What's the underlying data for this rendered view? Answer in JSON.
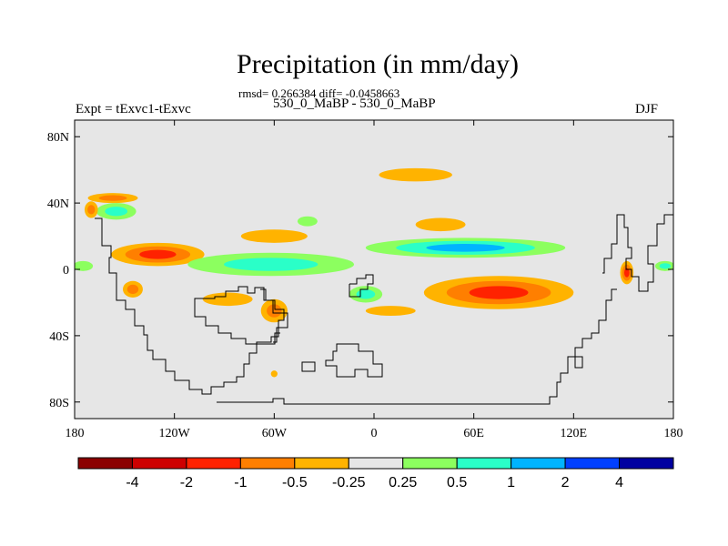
{
  "title": "Precipitation (in mm/day)",
  "stats": "rmsd= 0.266384 diff= -0.0458663",
  "subtitle": "530_0_MaBP - 530_0_MaBP",
  "left_label": "Expt = tExvc1-tExvc",
  "right_label": "DJF",
  "axes": {
    "lon_ticks": [
      {
        "value": -180,
        "label": "180"
      },
      {
        "value": -120,
        "label": "120W"
      },
      {
        "value": -60,
        "label": "60W"
      },
      {
        "value": 0,
        "label": "0"
      },
      {
        "value": 60,
        "label": "60E"
      },
      {
        "value": 120,
        "label": "120E"
      },
      {
        "value": 180,
        "label": "180"
      }
    ],
    "lat_ticks": [
      {
        "value": 80,
        "label": "80N"
      },
      {
        "value": 40,
        "label": "40N"
      },
      {
        "value": 0,
        "label": "0"
      },
      {
        "value": -40,
        "label": "40S"
      },
      {
        "value": -80,
        "label": "80S"
      }
    ],
    "lon_range": [
      -180,
      180
    ],
    "lat_range": [
      -90,
      90
    ]
  },
  "colors": {
    "background_field": "#e6e6e6",
    "coastline": "#000000"
  },
  "colorbar": {
    "colors": [
      "#8b0000",
      "#cd0000",
      "#ff2200",
      "#ff7f00",
      "#ffb300",
      "#e6e6e6",
      "#8cff5f",
      "#2affc8",
      "#00b4ff",
      "#0040ff",
      "#0000a0"
    ],
    "labels": [
      "-4",
      "-2",
      "-1",
      "-0.5",
      "-0.25",
      "0.25",
      "0.5",
      "1",
      "2",
      "4"
    ]
  },
  "chart_data": {
    "type": "heatmap",
    "variable": "Precipitation difference",
    "units": "mm/day",
    "season": "DJF",
    "levels": [
      -4,
      -2,
      -1,
      -0.5,
      -0.25,
      0.25,
      0.5,
      1,
      2,
      4
    ],
    "anomalies": [
      {
        "lon": 75,
        "lat": -14,
        "rx": 45,
        "ry": 10,
        "levels": [
          -0.25,
          -0.5,
          -1
        ]
      },
      {
        "lon": -130,
        "lat": 9,
        "rx": 28,
        "ry": 7,
        "levels": [
          -0.25,
          -0.5,
          -1
        ]
      },
      {
        "lon": 55,
        "lat": 13,
        "rx": 60,
        "ry": 6,
        "levels": [
          0.25,
          0.5,
          1
        ]
      },
      {
        "lon": -62,
        "lat": 3,
        "rx": 50,
        "ry": 7,
        "levels": [
          0.25,
          0.5
        ]
      },
      {
        "lon": -155,
        "lat": 35,
        "rx": 12,
        "ry": 5,
        "levels": [
          0.25,
          0.5
        ]
      },
      {
        "lon": -157,
        "lat": 43,
        "rx": 15,
        "ry": 3,
        "levels": [
          -0.25,
          -0.5
        ]
      },
      {
        "lon": -170,
        "lat": 36,
        "rx": 4,
        "ry": 5,
        "levels": [
          -0.25,
          -0.5
        ]
      },
      {
        "lon": 152,
        "lat": -2,
        "rx": 4,
        "ry": 7,
        "levels": [
          -0.25,
          -0.5,
          -1
        ]
      },
      {
        "lon": -145,
        "lat": -12,
        "rx": 6,
        "ry": 5,
        "levels": [
          -0.25,
          -0.5
        ]
      },
      {
        "lon": -60,
        "lat": -25,
        "rx": 8,
        "ry": 7,
        "levels": [
          -0.25,
          -0.5
        ]
      },
      {
        "lon": -88,
        "lat": -18,
        "rx": 15,
        "ry": 4,
        "levels": [
          -0.25
        ]
      },
      {
        "lon": 25,
        "lat": 57,
        "rx": 22,
        "ry": 4,
        "levels": [
          -0.25
        ]
      },
      {
        "lon": -60,
        "lat": 20,
        "rx": 20,
        "ry": 4,
        "levels": [
          -0.25
        ]
      },
      {
        "lon": 40,
        "lat": 27,
        "rx": 15,
        "ry": 4,
        "levels": [
          -0.25
        ]
      },
      {
        "lon": -40,
        "lat": 29,
        "rx": 6,
        "ry": 3,
        "levels": [
          0.25
        ]
      },
      {
        "lon": 175,
        "lat": 2,
        "rx": 6,
        "ry": 3,
        "levels": [
          0.25,
          0.5
        ]
      },
      {
        "lon": -175,
        "lat": 2,
        "rx": 6,
        "ry": 3,
        "levels": [
          0.25
        ]
      },
      {
        "lon": 10,
        "lat": -25,
        "rx": 15,
        "ry": 3,
        "levels": [
          -0.25
        ]
      },
      {
        "lon": -5,
        "lat": -15,
        "rx": 10,
        "ry": 5,
        "levels": [
          0.25,
          0.5
        ]
      },
      {
        "lon": -60,
        "lat": -63,
        "rx": 2,
        "ry": 2,
        "levels": [
          -0.25
        ]
      }
    ]
  }
}
